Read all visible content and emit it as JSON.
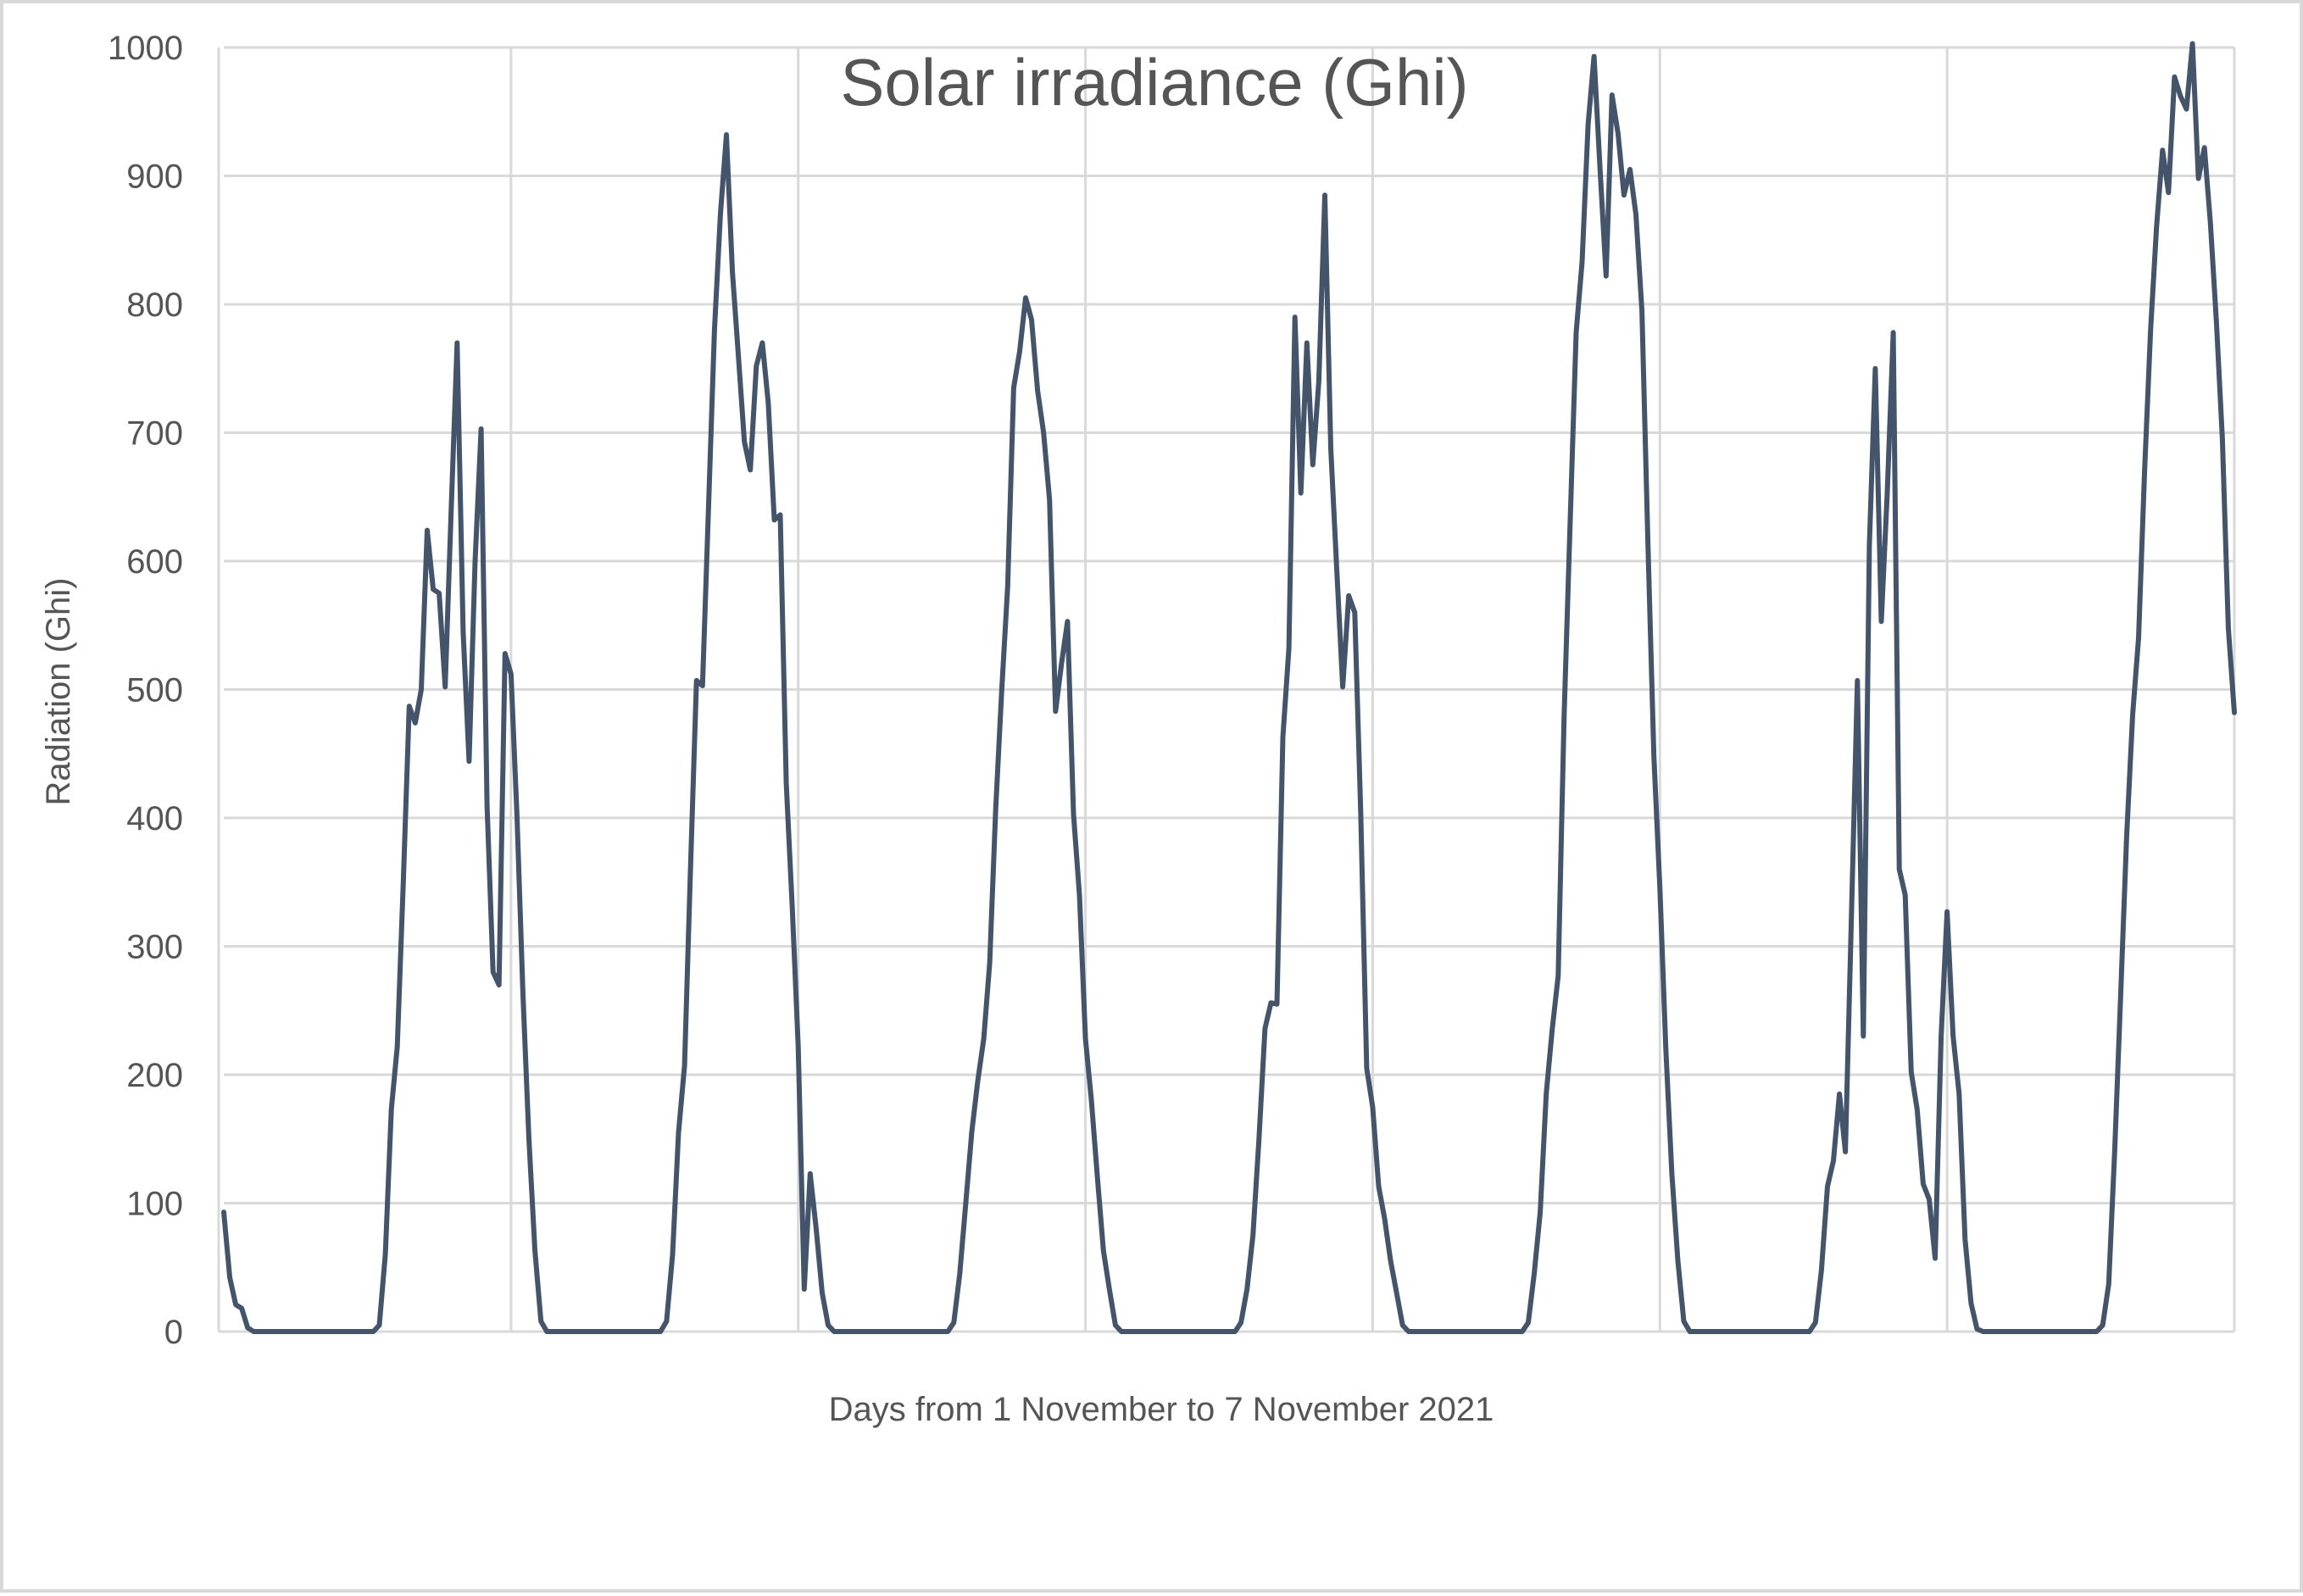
{
  "chart_data": {
    "type": "line",
    "title": "Solar irradiance (Ghi)",
    "xlabel": "Days from 1 November to 7 November 2021",
    "ylabel": "Radiation (Ghi)",
    "ylim": [
      0,
      1000
    ],
    "yticks": [
      "0",
      "100",
      "200",
      "300",
      "400",
      "500",
      "600",
      "700",
      "800",
      "900",
      "1000"
    ],
    "x_unit": "hours from start",
    "xlim": [
      0,
      168
    ],
    "grid": true,
    "legend": "none",
    "line_color": "#44546a",
    "series": [
      {
        "values": [
          [
            0.0,
            93
          ],
          [
            0.5,
            42
          ],
          [
            1.0,
            21
          ],
          [
            1.5,
            18
          ],
          [
            2.0,
            3
          ],
          [
            2.5,
            0
          ],
          [
            12.5,
            0
          ],
          [
            13.0,
            5
          ],
          [
            13.5,
            60
          ],
          [
            14.0,
            173
          ],
          [
            14.5,
            222
          ],
          [
            15.0,
            350
          ],
          [
            15.5,
            487
          ],
          [
            16.0,
            474
          ],
          [
            16.5,
            500
          ],
          [
            17.0,
            624
          ],
          [
            17.5,
            578
          ],
          [
            18.0,
            575
          ],
          [
            18.5,
            502
          ],
          [
            19.0,
            640
          ],
          [
            19.5,
            770
          ],
          [
            20.0,
            545
          ],
          [
            20.5,
            444
          ],
          [
            21.0,
            600
          ],
          [
            21.5,
            703
          ],
          [
            22.0,
            410
          ],
          [
            22.5,
            280
          ],
          [
            23.0,
            270
          ],
          [
            23.5,
            528
          ],
          [
            24.0,
            512
          ],
          [
            24.5,
            402
          ],
          [
            25.0,
            262
          ],
          [
            25.5,
            150
          ],
          [
            26.0,
            63
          ],
          [
            26.5,
            8
          ],
          [
            27.0,
            0
          ],
          [
            36.5,
            0
          ],
          [
            37.0,
            8
          ],
          [
            37.5,
            60
          ],
          [
            38.0,
            155
          ],
          [
            38.5,
            207
          ],
          [
            39.0,
            360
          ],
          [
            39.5,
            507
          ],
          [
            40.0,
            503
          ],
          [
            40.5,
            640
          ],
          [
            41.0,
            780
          ],
          [
            41.5,
            870
          ],
          [
            42.0,
            932
          ],
          [
            42.5,
            825
          ],
          [
            43.0,
            760
          ],
          [
            43.5,
            693
          ],
          [
            44.0,
            671
          ],
          [
            44.5,
            752
          ],
          [
            45.0,
            770
          ],
          [
            45.5,
            723
          ],
          [
            46.0,
            632
          ],
          [
            46.5,
            636
          ],
          [
            47.0,
            427
          ],
          [
            47.5,
            330
          ],
          [
            48.0,
            222
          ],
          [
            48.5,
            33
          ],
          [
            49.0,
            123
          ],
          [
            49.5,
            80
          ],
          [
            50.0,
            30
          ],
          [
            50.5,
            5
          ],
          [
            51.0,
            0
          ],
          [
            60.5,
            0
          ],
          [
            61.0,
            7
          ],
          [
            61.5,
            45
          ],
          [
            62.0,
            100
          ],
          [
            62.5,
            155
          ],
          [
            63.0,
            195
          ],
          [
            63.5,
            228
          ],
          [
            64.0,
            287
          ],
          [
            64.5,
            407
          ],
          [
            65.0,
            498
          ],
          [
            65.5,
            580
          ],
          [
            66.0,
            735
          ],
          [
            66.5,
            763
          ],
          [
            67.0,
            805
          ],
          [
            67.5,
            788
          ],
          [
            68.0,
            733
          ],
          [
            68.5,
            700
          ],
          [
            69.0,
            648
          ],
          [
            69.5,
            483
          ],
          [
            70.0,
            520
          ],
          [
            70.5,
            553
          ],
          [
            71.0,
            403
          ],
          [
            71.5,
            340
          ],
          [
            72.0,
            228
          ],
          [
            72.5,
            180
          ],
          [
            73.0,
            120
          ],
          [
            73.5,
            63
          ],
          [
            74.0,
            33
          ],
          [
            74.5,
            5
          ],
          [
            75.0,
            0
          ],
          [
            84.5,
            0
          ],
          [
            85.0,
            7
          ],
          [
            85.5,
            33
          ],
          [
            86.0,
            75
          ],
          [
            86.5,
            150
          ],
          [
            87.0,
            236
          ],
          [
            87.5,
            256
          ],
          [
            88.0,
            255
          ],
          [
            88.5,
            463
          ],
          [
            89.0,
            532
          ],
          [
            89.5,
            790
          ],
          [
            90.0,
            653
          ],
          [
            90.5,
            770
          ],
          [
            91.0,
            675
          ],
          [
            91.5,
            740
          ],
          [
            92.0,
            885
          ],
          [
            92.5,
            688
          ],
          [
            93.0,
            593
          ],
          [
            93.5,
            502
          ],
          [
            94.0,
            573
          ],
          [
            94.5,
            560
          ],
          [
            95.0,
            405
          ],
          [
            95.5,
            205
          ],
          [
            96.0,
            175
          ],
          [
            96.5,
            113
          ],
          [
            97.0,
            88
          ],
          [
            97.5,
            55
          ],
          [
            98.0,
            30
          ],
          [
            98.5,
            5
          ],
          [
            99.0,
            0
          ],
          [
            108.5,
            0
          ],
          [
            109.0,
            7
          ],
          [
            109.5,
            45
          ],
          [
            110.0,
            93
          ],
          [
            110.5,
            185
          ],
          [
            111.0,
            235
          ],
          [
            111.5,
            277
          ],
          [
            112.0,
            480
          ],
          [
            112.5,
            630
          ],
          [
            113.0,
            778
          ],
          [
            113.5,
            833
          ],
          [
            114.0,
            940
          ],
          [
            114.5,
            993
          ],
          [
            115.0,
            905
          ],
          [
            115.5,
            822
          ],
          [
            116.0,
            963
          ],
          [
            116.5,
            933
          ],
          [
            117.0,
            885
          ],
          [
            117.5,
            905
          ],
          [
            118.0,
            870
          ],
          [
            118.5,
            795
          ],
          [
            119.0,
            613
          ],
          [
            119.5,
            448
          ],
          [
            120.0,
            345
          ],
          [
            120.5,
            220
          ],
          [
            121.0,
            123
          ],
          [
            121.5,
            55
          ],
          [
            122.0,
            8
          ],
          [
            122.5,
            0
          ],
          [
            132.5,
            0
          ],
          [
            133.0,
            7
          ],
          [
            133.5,
            48
          ],
          [
            134.0,
            113
          ],
          [
            134.5,
            133
          ],
          [
            135.0,
            185
          ],
          [
            135.5,
            140
          ],
          [
            136.0,
            322
          ],
          [
            136.5,
            507
          ],
          [
            137.0,
            230
          ],
          [
            137.5,
            612
          ],
          [
            138.0,
            750
          ],
          [
            138.5,
            553
          ],
          [
            139.0,
            653
          ],
          [
            139.5,
            778
          ],
          [
            140.0,
            360
          ],
          [
            140.5,
            340
          ],
          [
            141.0,
            202
          ],
          [
            141.5,
            173
          ],
          [
            142.0,
            115
          ],
          [
            142.5,
            103
          ],
          [
            143.0,
            57
          ],
          [
            143.5,
            230
          ],
          [
            144.0,
            327
          ],
          [
            144.5,
            230
          ],
          [
            145.0,
            185
          ],
          [
            145.5,
            72
          ],
          [
            146.0,
            22
          ],
          [
            146.5,
            2
          ],
          [
            147.0,
            0
          ],
          [
            156.5,
            0
          ],
          [
            157.0,
            5
          ],
          [
            157.5,
            37
          ],
          [
            158.0,
            140
          ],
          [
            158.5,
            262
          ],
          [
            159.0,
            385
          ],
          [
            159.5,
            480
          ],
          [
            160.0,
            540
          ],
          [
            160.5,
            670
          ],
          [
            161.0,
            780
          ],
          [
            161.5,
            860
          ],
          [
            162.0,
            920
          ],
          [
            162.5,
            887
          ],
          [
            163.0,
            977
          ],
          [
            163.5,
            962
          ],
          [
            164.0,
            952
          ],
          [
            164.5,
            1003
          ],
          [
            165.0,
            898
          ],
          [
            165.5,
            922
          ],
          [
            166.0,
            863
          ],
          [
            166.5,
            787
          ],
          [
            167.0,
            695
          ],
          [
            167.5,
            548
          ],
          [
            168.0,
            482
          ]
        ]
      }
    ]
  }
}
